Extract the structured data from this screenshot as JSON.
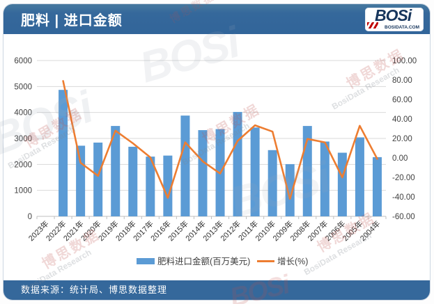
{
  "header": {
    "title": "肥料 | 进口金额"
  },
  "logo": {
    "text": "BOSi",
    "domain": "BOSIDATA.COM"
  },
  "footer": {
    "source": "数据来源：统计局、博思数据整理"
  },
  "watermarks": {
    "cn": "博思数据",
    "en": "BosiData Research",
    "logo": "BOSi"
  },
  "chart_data": {
    "type": "combo-bar-line",
    "categories": [
      "2023年",
      "2022年",
      "2021年",
      "2020年",
      "2019年",
      "2018年",
      "2017年",
      "2016年",
      "2015年",
      "2014年",
      "2013年",
      "2012年",
      "2011年",
      "2010年",
      "2009年",
      "2008年",
      "2007年",
      "2006年",
      "2005年",
      "2004年"
    ],
    "series": [
      {
        "name": "肥料进口金额(百万美元)",
        "type": "bar",
        "axis": "left",
        "color": "#5B9BD5",
        "values": [
          null,
          4870,
          2720,
          2840,
          3480,
          2680,
          2300,
          2340,
          3880,
          3320,
          3360,
          4020,
          3420,
          2550,
          2010,
          3480,
          2880,
          2450,
          3040,
          2280
        ]
      },
      {
        "name": "增长(%)",
        "type": "line",
        "axis": "right",
        "color": "#ED7D31",
        "values": [
          null,
          79,
          -5,
          -18.4,
          28,
          15,
          0.5,
          -41,
          16,
          -3.5,
          -16,
          17.5,
          33.5,
          27,
          -42,
          19.5,
          16,
          -20,
          33,
          -1
        ]
      }
    ],
    "left_axis": {
      "min": 0,
      "max": 6000,
      "step": 1000,
      "tick_labels": [
        "6000",
        "5000",
        "4000",
        "3000",
        "2000",
        "1000",
        "0"
      ]
    },
    "right_axis": {
      "min": -60,
      "max": 100,
      "step": 20,
      "tick_labels": [
        "100.00",
        "80.00",
        "60.00",
        "40.00",
        "20.00",
        "0.00",
        "-20.00",
        "-40.00",
        "-60.00"
      ]
    },
    "grid": true,
    "legend_position": "bottom"
  }
}
